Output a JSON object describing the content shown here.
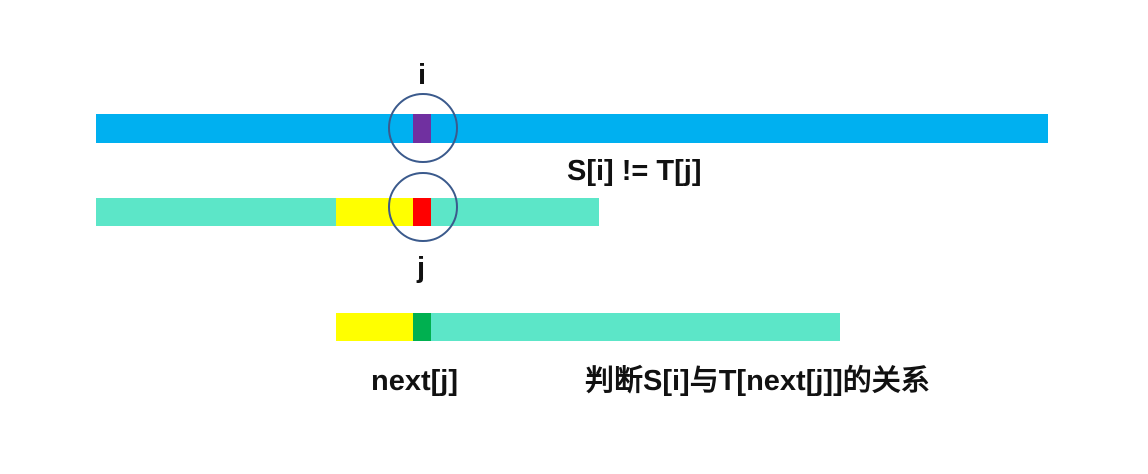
{
  "labels": {
    "i": "i",
    "j": "j",
    "mismatch": "S[i] != T[j]",
    "next_j": "next[j]",
    "compare": "判断S[i]与T[next[j]]的关系"
  },
  "colors": {
    "main_string": "#00B0F0",
    "pattern": "#5CE6C8",
    "matched_prefix": "#FFFF00",
    "s_i_char": "#7030A0",
    "t_j_char": "#FF0000",
    "t_next_j_char": "#00B050",
    "circle_stroke": "#3B5A8C"
  }
}
